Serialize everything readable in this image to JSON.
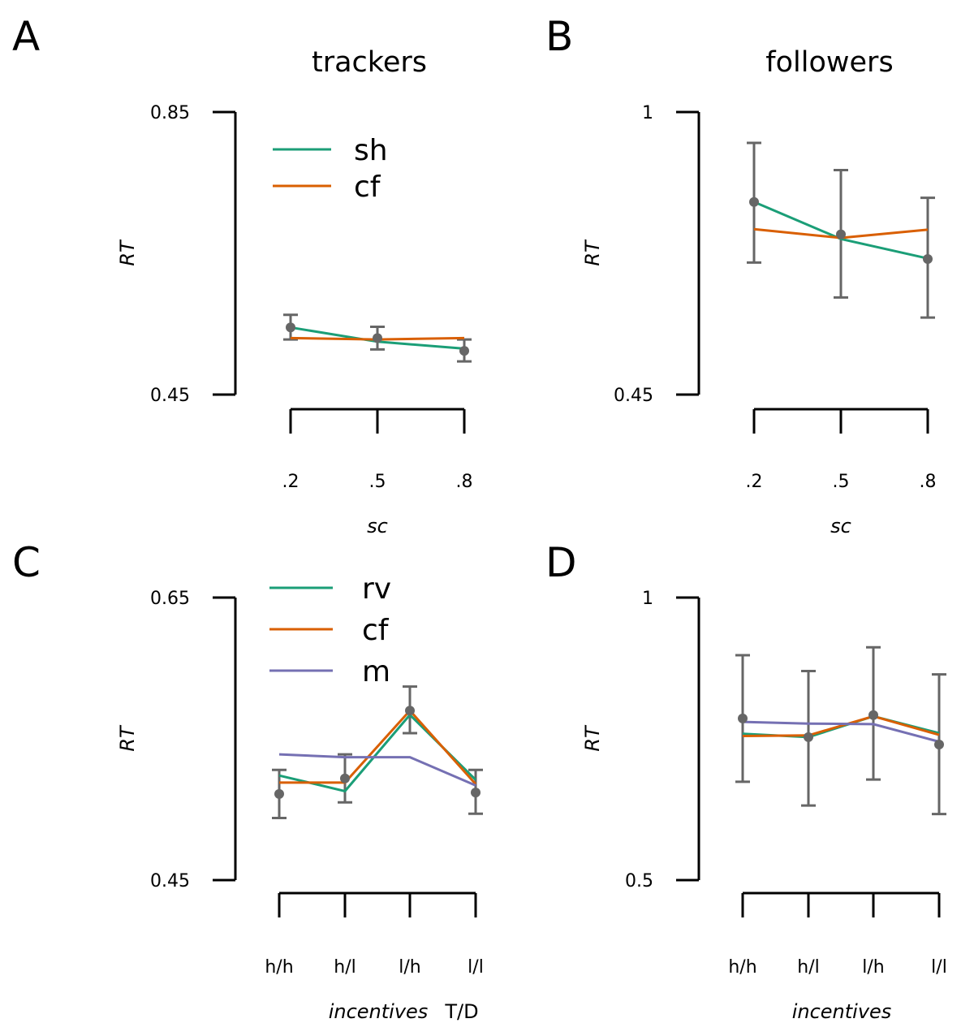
{
  "colors": {
    "sh": "#1b9e77",
    "rv": "#1b9e77",
    "cf": "#d95f02",
    "m": "#7570b3",
    "points": "#666666",
    "axis": "#000000"
  },
  "chart_data": [
    {
      "panel": "A",
      "type": "line",
      "title": "trackers",
      "xlabel": "sc",
      "ylabel": "RT",
      "categories": [
        ".2",
        ".5",
        ".8"
      ],
      "yticks": [
        "0.85",
        "0.45"
      ],
      "ylim": [
        0.45,
        0.85
      ],
      "series": [
        {
          "name": "sh",
          "color_key": "sh",
          "values": [
            0.545,
            0.525,
            0.515
          ]
        },
        {
          "name": "cf",
          "color_key": "cf",
          "values": [
            0.53,
            0.528,
            0.53
          ]
        }
      ],
      "points": [
        {
          "mean": 0.545,
          "lo": 0.528,
          "hi": 0.563
        },
        {
          "mean": 0.53,
          "lo": 0.514,
          "hi": 0.546
        },
        {
          "mean": 0.512,
          "lo": 0.497,
          "hi": 0.528
        }
      ],
      "legend": [
        "sh",
        "cf"
      ],
      "legend_position": "top-left"
    },
    {
      "panel": "B",
      "type": "line",
      "title": "followers",
      "xlabel": "sc",
      "ylabel": "RT",
      "categories": [
        ".2",
        ".5",
        ".8"
      ],
      "yticks": [
        "1",
        "0.45"
      ],
      "ylim": [
        0.45,
        1.0
      ],
      "series": [
        {
          "name": "sh",
          "color_key": "sh",
          "values": [
            0.825,
            0.753,
            0.715
          ]
        },
        {
          "name": "cf",
          "color_key": "cf",
          "values": [
            0.772,
            0.755,
            0.771
          ]
        }
      ],
      "points": [
        {
          "mean": 0.825,
          "lo": 0.707,
          "hi": 0.94
        },
        {
          "mean": 0.762,
          "lo": 0.639,
          "hi": 0.887
        },
        {
          "mean": 0.714,
          "lo": 0.6,
          "hi": 0.833
        }
      ]
    },
    {
      "panel": "C",
      "type": "line",
      "xlabel": "incentives",
      "xlabel_extra": "T/D",
      "ylabel": "RT",
      "categories": [
        "h/h",
        "h/l",
        "l/h",
        "l/l"
      ],
      "yticks": [
        "0.65",
        "0.45"
      ],
      "ylim": [
        0.45,
        0.65
      ],
      "series": [
        {
          "name": "rv",
          "color_key": "rv",
          "values": [
            0.524,
            0.513,
            0.567,
            0.521
          ]
        },
        {
          "name": "cf",
          "color_key": "cf",
          "values": [
            0.519,
            0.519,
            0.57,
            0.518
          ]
        },
        {
          "name": "m",
          "color_key": "m",
          "values": [
            0.539,
            0.537,
            0.537,
            0.517
          ]
        }
      ],
      "points": [
        {
          "mean": 0.511,
          "lo": 0.494,
          "hi": 0.528
        },
        {
          "mean": 0.522,
          "lo": 0.505,
          "hi": 0.539
        },
        {
          "mean": 0.57,
          "lo": 0.554,
          "hi": 0.587
        },
        {
          "mean": 0.512,
          "lo": 0.497,
          "hi": 0.528
        }
      ],
      "legend": [
        "rv",
        "cf",
        "m"
      ],
      "legend_position": "top-left"
    },
    {
      "panel": "D",
      "type": "line",
      "xlabel": "incentives",
      "ylabel": "RT",
      "categories": [
        "h/h",
        "h/l",
        "l/h",
        "l/l"
      ],
      "yticks": [
        "1",
        "0.5"
      ],
      "ylim": [
        0.5,
        1.0
      ],
      "series": [
        {
          "name": "rv",
          "color_key": "rv",
          "values": [
            0.759,
            0.753,
            0.79,
            0.76
          ]
        },
        {
          "name": "cf",
          "color_key": "cf",
          "values": [
            0.755,
            0.756,
            0.79,
            0.757
          ]
        },
        {
          "name": "m",
          "color_key": "m",
          "values": [
            0.78,
            0.777,
            0.776,
            0.745
          ]
        }
      ],
      "points": [
        {
          "mean": 0.786,
          "lo": 0.674,
          "hi": 0.898
        },
        {
          "mean": 0.753,
          "lo": 0.632,
          "hi": 0.87
        },
        {
          "mean": 0.792,
          "lo": 0.678,
          "hi": 0.912
        },
        {
          "mean": 0.74,
          "lo": 0.617,
          "hi": 0.864
        }
      ]
    }
  ]
}
